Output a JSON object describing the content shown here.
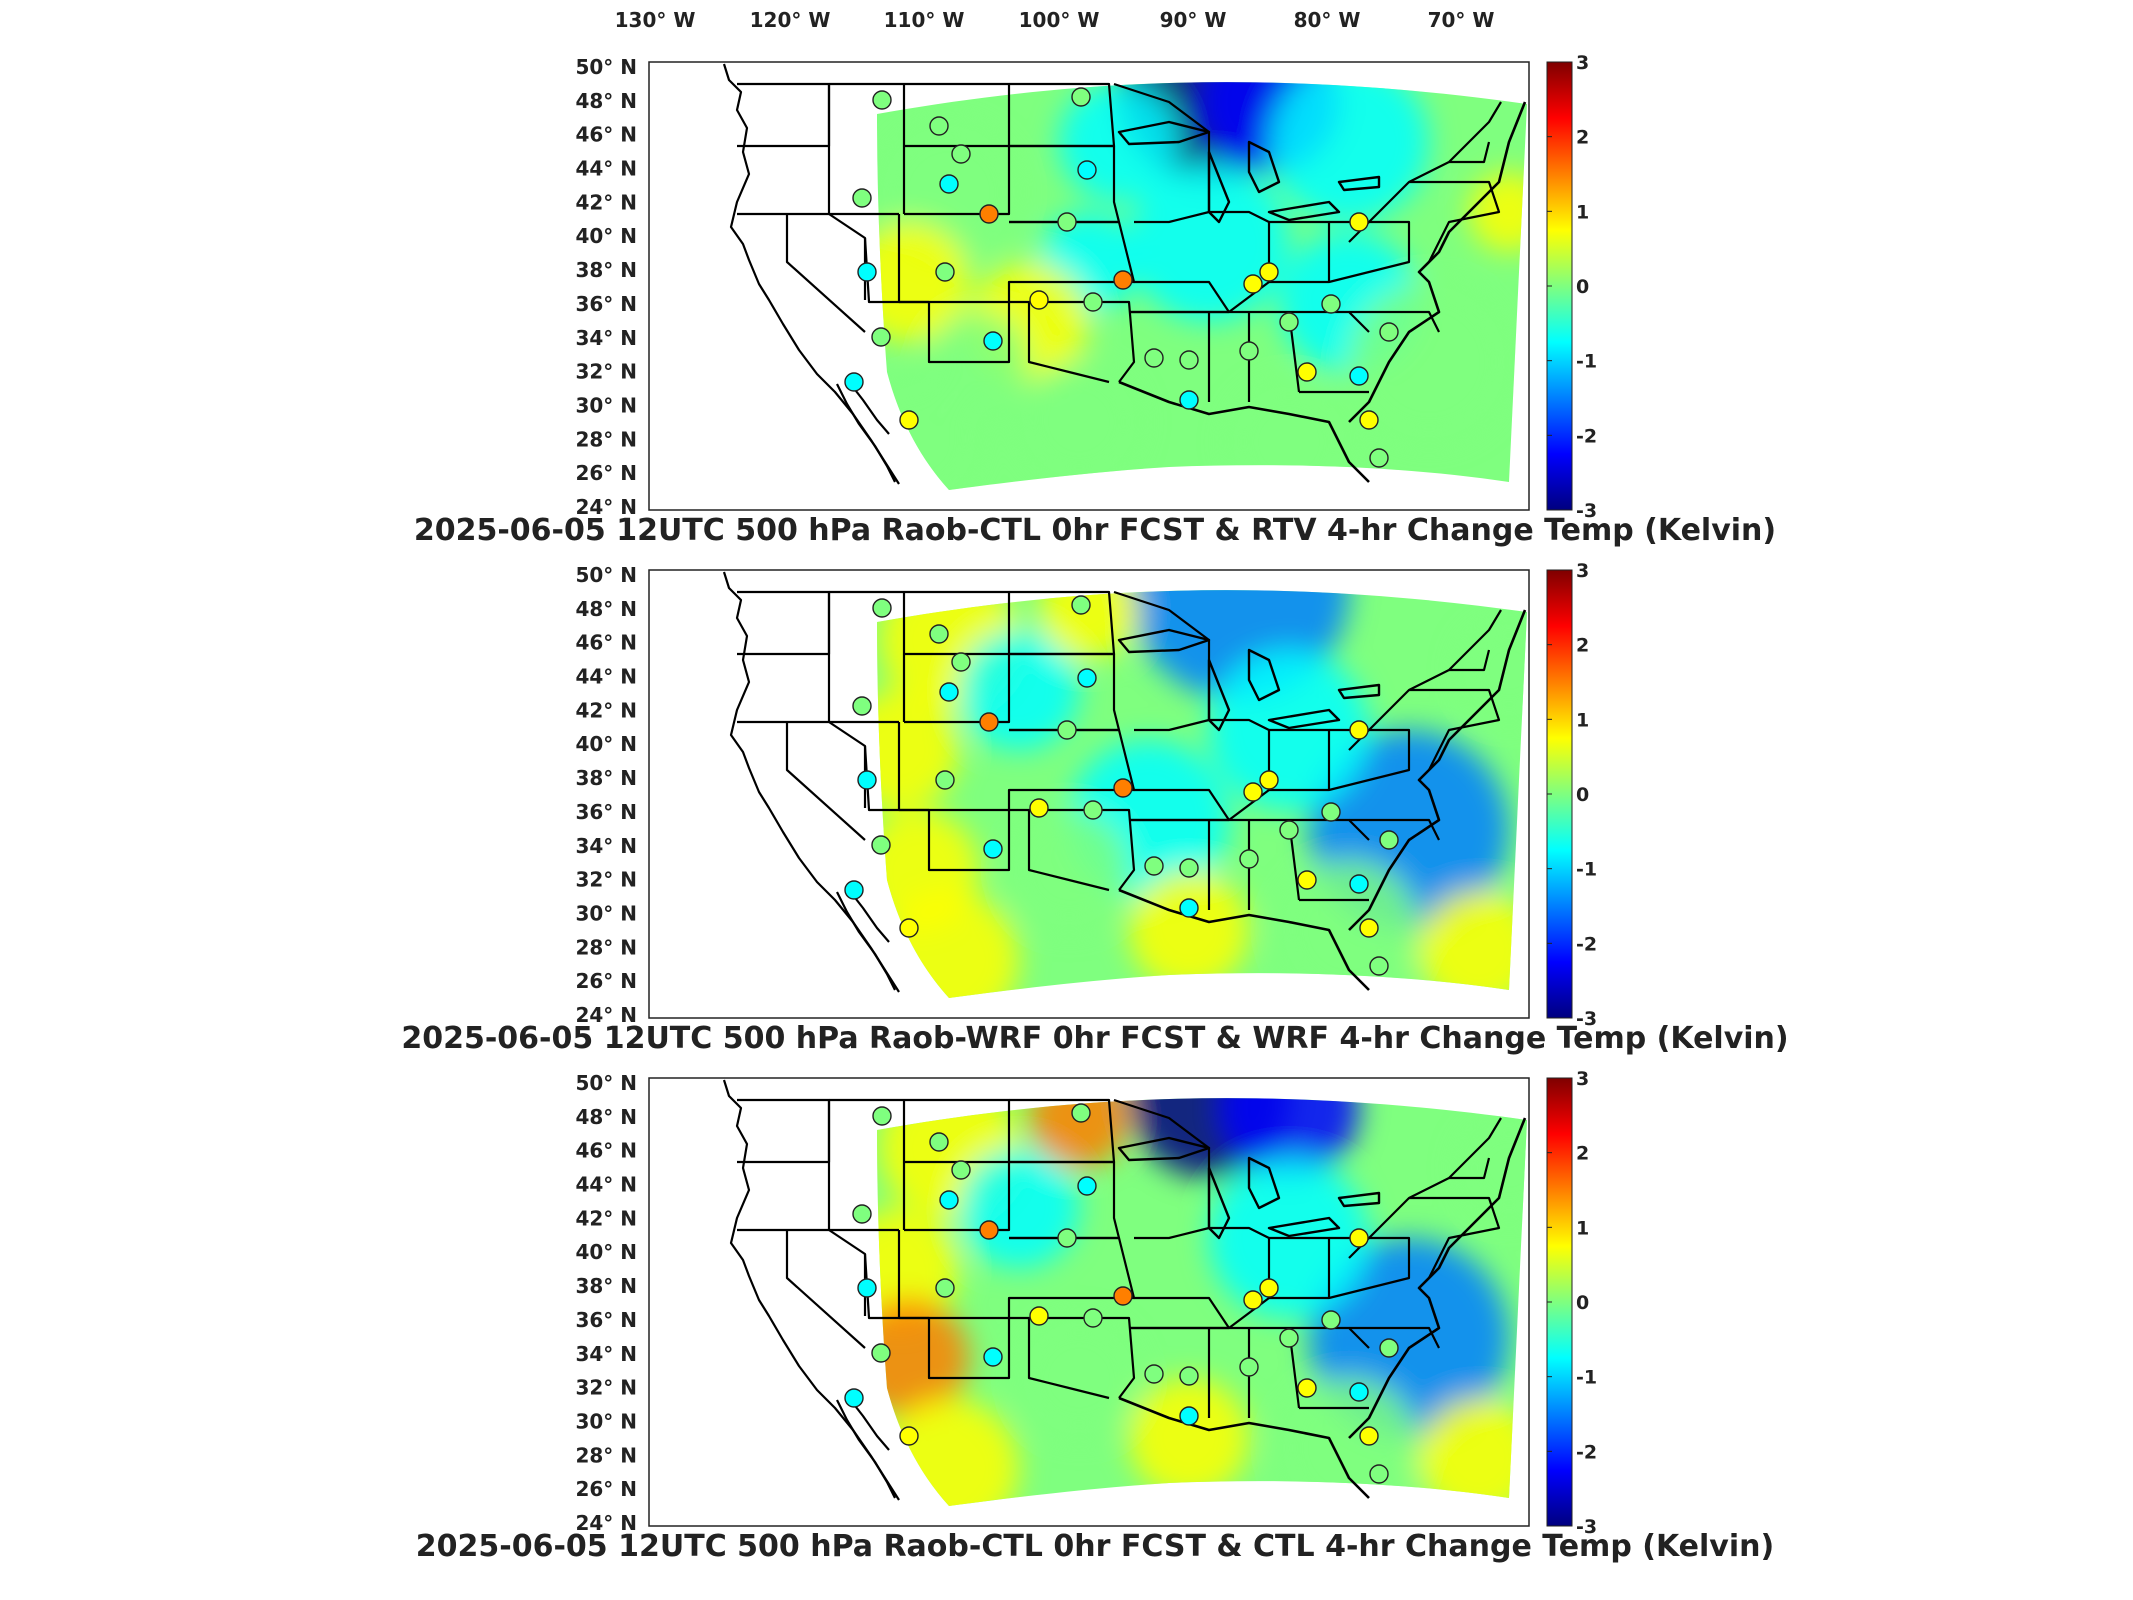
{
  "top_longitude_labels": [
    "130° W",
    "120° W",
    "110° W",
    "100° W",
    "90° W",
    "80° W",
    "70° W"
  ],
  "latitude_labels": [
    "50° N",
    "48° N",
    "46° N",
    "44° N",
    "42° N",
    "40° N",
    "38° N",
    "36° N",
    "34° N",
    "32° N",
    "30° N",
    "28° N",
    "26° N",
    "24° N"
  ],
  "colorbar": {
    "ticks": [
      "3",
      "2",
      "1",
      "0",
      "-1",
      "-2",
      "-3"
    ],
    "range": [
      -3,
      3
    ],
    "colormap": "jet",
    "colors": [
      "#00007f",
      "#0000ff",
      "#007fff",
      "#00ffff",
      "#7fff7f",
      "#ffff00",
      "#ff7f00",
      "#ff0000",
      "#7f0000"
    ]
  },
  "panels": [
    {
      "title": "2025-06-05 12UTC 500 hPa Raob-CTL 0hr FCST & RTV 4-hr Change Temp (Kelvin)",
      "station_values": [
        0.3,
        -0.2,
        0.0,
        -1.0,
        0.2,
        1.6,
        -0.7,
        -0.3,
        0.4,
        -0.8,
        0.2,
        -0.6,
        0.9,
        0.1,
        -0.4,
        0.3,
        1.8,
        -0.3,
        0.0,
        0.1,
        -0.5,
        0.6,
        0.4,
        -0.1,
        -0.2,
        0.8,
        0.0,
        -0.6,
        0.2,
        1.0,
        0.1,
        0.5
      ]
    },
    {
      "title": "2025-06-05 12UTC 500 hPa Raob-WRF 0hr FCST & WRF 4-hr Change Temp (Kelvin)",
      "station_values": [
        0.3,
        -0.2,
        0.0,
        -1.0,
        0.2,
        1.6,
        -0.7,
        -0.3,
        0.4,
        -0.8,
        0.2,
        -0.6,
        0.9,
        0.1,
        -0.4,
        0.3,
        1.8,
        -0.3,
        0.0,
        0.1,
        -0.5,
        0.6,
        0.4,
        -0.1,
        -0.2,
        0.8,
        0.0,
        -0.6,
        0.2,
        1.0,
        0.1,
        0.5
      ]
    },
    {
      "title": "2025-06-05 12UTC 500 hPa Raob-CTL 0hr FCST & CTL 4-hr Change Temp (Kelvin)",
      "station_values": [
        0.3,
        -0.2,
        0.0,
        -1.0,
        0.2,
        1.6,
        -0.7,
        -0.3,
        0.4,
        -0.8,
        0.2,
        -0.6,
        0.9,
        0.1,
        -0.4,
        0.3,
        1.8,
        -0.3,
        0.0,
        0.1,
        -0.5,
        0.6,
        0.4,
        -0.1,
        -0.2,
        0.8,
        0.0,
        -0.6,
        0.2,
        1.0,
        0.1,
        0.5
      ]
    }
  ]
}
